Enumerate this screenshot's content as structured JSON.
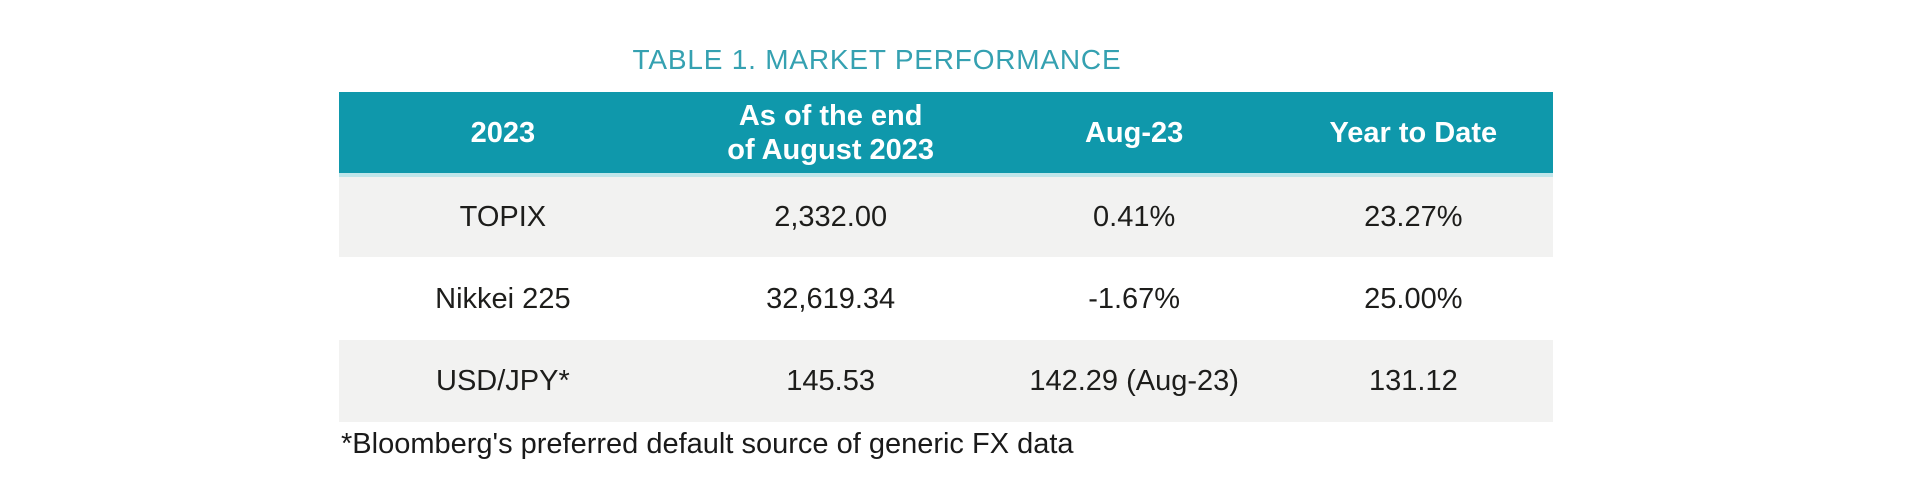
{
  "page": {
    "title": "TABLE 1. MARKET PERFORMANCE"
  },
  "table": {
    "header": {
      "col1": "2023",
      "col2": "As of the end\nof August 2023",
      "col3": "Aug-23",
      "col4": "Year to Date"
    },
    "rows": [
      {
        "label": "TOPIX",
        "end_aug": "2,332.00",
        "aug": "0.41%",
        "ytd": "23.27%"
      },
      {
        "label": "Nikkei 225",
        "end_aug": "32,619.34",
        "aug": "-1.67%",
        "ytd": "25.00%"
      },
      {
        "label": "USD/JPY*",
        "end_aug": "145.53",
        "aug": "142.29 (Aug-23)",
        "ytd": "131.12"
      }
    ],
    "footnote": "*Bloomberg's preferred default source of generic FX data"
  },
  "colors": {
    "header_bg": "#0f98ab",
    "header_text": "#ffffff",
    "header_separator": "#bfe6ea",
    "title_text": "#35a1b1",
    "row_alt_bg": "#f2f2f1",
    "row_plain_bg": "#ffffff",
    "body_text": "#1d1d1b"
  },
  "chart_data": {
    "type": "table",
    "title": "TABLE 1. MARKET PERFORMANCE",
    "columns": [
      "2023",
      "As of the end of August 2023",
      "Aug-23",
      "Year to Date"
    ],
    "rows": [
      [
        "TOPIX",
        "2,332.00",
        "0.41%",
        "23.27%"
      ],
      [
        "Nikkei 225",
        "32,619.34",
        "-1.67%",
        "25.00%"
      ],
      [
        "USD/JPY*",
        "145.53",
        "142.29 (Aug-23)",
        "131.12"
      ]
    ],
    "numeric_rows": [
      {
        "name": "TOPIX",
        "end_of_august_2023": 2332.0,
        "aug_23_pct": 0.41,
        "year_to_date_pct": 23.27
      },
      {
        "name": "Nikkei 225",
        "end_of_august_2023": 32619.34,
        "aug_23_pct": -1.67,
        "year_to_date_pct": 25.0
      },
      {
        "name": "USD/JPY",
        "end_of_august_2023": 145.53,
        "aug_23": 142.29,
        "year_to_date": 131.12
      }
    ],
    "footnote": "*Bloomberg's preferred default source of generic FX data",
    "layout": "header row teal, body rows striped gray/white, all cells center-aligned"
  }
}
